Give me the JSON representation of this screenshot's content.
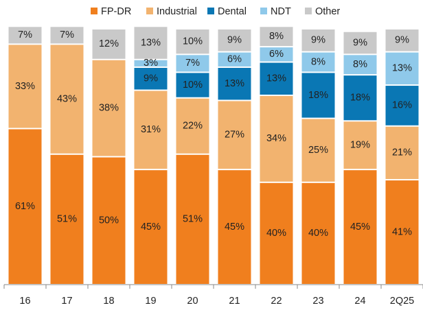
{
  "chart_data": {
    "type": "stacked_bar",
    "categories": [
      "16",
      "17",
      "18",
      "19",
      "20",
      "21",
      "22",
      "23",
      "24",
      "2Q25"
    ],
    "series": [
      {
        "name": "FP-DR",
        "color": "#f07f1e",
        "values": [
          61,
          51,
          50,
          45,
          51,
          45,
          40,
          40,
          45,
          41
        ],
        "value_labels": [
          "61%",
          "51%",
          "50%",
          "45%",
          "51%",
          "45%",
          "40%",
          "40%",
          "45%",
          "41%"
        ]
      },
      {
        "name": "Industrial",
        "color": "#f2b36f",
        "values": [
          33,
          43,
          38,
          31,
          22,
          27,
          34,
          25,
          19,
          21
        ],
        "value_labels": [
          "33%",
          "43%",
          "38%",
          "31%",
          "22%",
          "27%",
          "34%",
          "25%",
          "19%",
          "21%"
        ]
      },
      {
        "name": "Dental",
        "color": "#0a77b4",
        "values": [
          null,
          null,
          null,
          9,
          10,
          13,
          13,
          18,
          18,
          16
        ],
        "value_labels": [
          null,
          null,
          null,
          "9%",
          "10%",
          "13%",
          "13%",
          "18%",
          "18%",
          "16%"
        ]
      },
      {
        "name": "NDT",
        "color": "#8fc9ea",
        "values": [
          null,
          null,
          null,
          3,
          7,
          6,
          6,
          8,
          8,
          13
        ],
        "value_labels": [
          null,
          null,
          null,
          "3%",
          "7%",
          "6%",
          "6%",
          "8%",
          "8%",
          "13%"
        ]
      },
      {
        "name": "Other",
        "color": "#c9c9c9",
        "values": [
          7,
          7,
          12,
          13,
          10,
          9,
          8,
          9,
          9,
          9
        ],
        "value_labels": [
          "7%",
          "7%",
          "12%",
          "13%",
          "10%",
          "9%",
          "8%",
          "9%",
          "9%",
          "9%"
        ]
      }
    ],
    "ylim": [
      0,
      100
    ]
  }
}
